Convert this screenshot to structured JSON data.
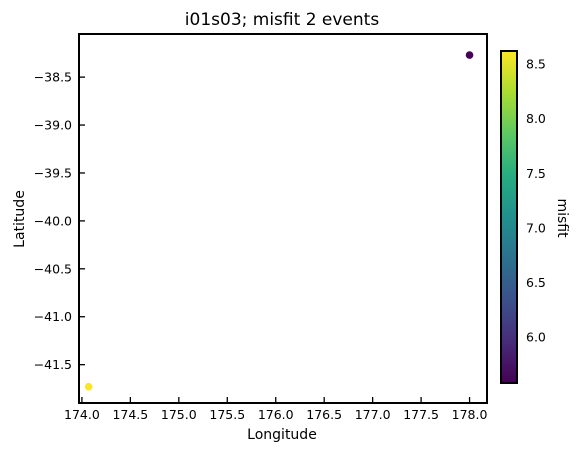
{
  "chart_data": {
    "type": "scatter",
    "title": "i01s03; misfit 2 events",
    "xlabel": "Longitude",
    "ylabel": "Latitude",
    "xlim": [
      173.97,
      178.18
    ],
    "ylim": [
      -41.9,
      -38.05
    ],
    "xticks": [
      174.0,
      174.5,
      175.0,
      175.5,
      176.0,
      176.5,
      177.0,
      177.5,
      178.0
    ],
    "xtick_labels": [
      "174.0",
      "174.5",
      "175.0",
      "175.5",
      "176.0",
      "176.5",
      "177.0",
      "177.5",
      "178.0"
    ],
    "yticks": [
      -38.5,
      -39.0,
      -39.5,
      -40.0,
      -40.5,
      -41.0,
      -41.5
    ],
    "ytick_labels": [
      "−38.5",
      "−39.0",
      "−39.5",
      "−40.0",
      "−40.5",
      "−41.0",
      "−41.5"
    ],
    "points": [
      {
        "x": 178.0,
        "y": -38.27,
        "misfit": 5.6
      },
      {
        "x": 174.07,
        "y": -41.73,
        "misfit": 8.6
      }
    ],
    "colorbar": {
      "label": "misfit",
      "range": [
        5.58,
        8.62
      ],
      "colormap": "viridis",
      "ticks": [
        6.0,
        6.5,
        7.0,
        7.5,
        8.0,
        8.5
      ],
      "tick_labels": [
        "6.0",
        "6.5",
        "7.0",
        "7.5",
        "8.0",
        "8.5"
      ]
    },
    "grid": false,
    "legend": "none"
  }
}
